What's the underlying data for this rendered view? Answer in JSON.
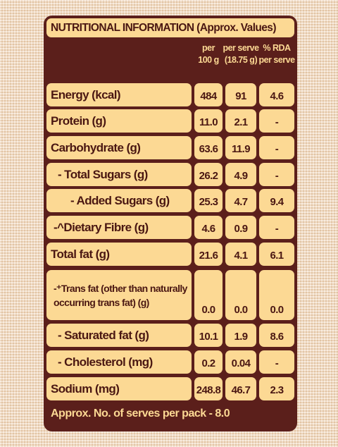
{
  "header": {
    "title": "NUTRITIONAL INFORMATION (Approx. Values)",
    "columns": [
      [
        "per",
        "100 g"
      ],
      [
        "per serve",
        "(18.75 g)"
      ],
      [
        "% RDA",
        "per serve"
      ]
    ]
  },
  "table": {
    "rows": [
      [
        "Energy (kcal)",
        "484",
        "91",
        "4.6"
      ],
      [
        "Protein (g)",
        "11.0",
        "2.1",
        "-"
      ],
      [
        "Carbohydrate (g)",
        "63.6",
        "11.9",
        "-"
      ],
      [
        "- Total Sugars (g)",
        "26.2",
        "4.9",
        "-"
      ],
      [
        "- Added Sugars (g)",
        "25.3",
        "4.7",
        "9.4"
      ],
      [
        "-^Dietary Fibre (g)",
        "4.6",
        "0.9",
        "-"
      ],
      [
        "Total fat (g)",
        "21.6",
        "4.1",
        "6.1"
      ],
      [
        "-⁺Trans fat (other than naturally occurring trans fat) (g)",
        "0.0",
        "0.0",
        "0.0"
      ],
      [
        "- Saturated fat (g)",
        "10.1",
        "1.9",
        "8.6"
      ],
      [
        "- Cholesterol (mg)",
        "0.2",
        "0.04",
        "-"
      ],
      [
        "Sodium (mg)",
        "248.8",
        "46.7",
        "2.3"
      ]
    ]
  },
  "footer": "Approx. No. of serves per pack - 8.0"
}
